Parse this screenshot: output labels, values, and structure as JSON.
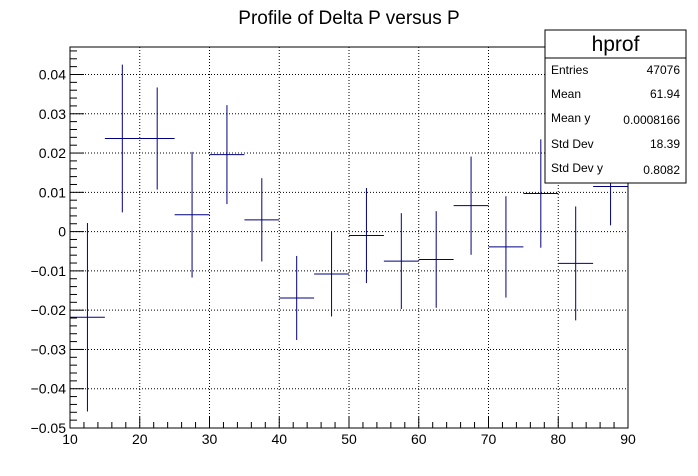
{
  "chart_data": {
    "type": "profile",
    "title": "Profile of Delta P versus P",
    "xlabel": "",
    "ylabel": "",
    "xlim": [
      10,
      90
    ],
    "ylim": [
      -0.05,
      0.047
    ],
    "grid": true,
    "x_ticks": [
      10,
      20,
      30,
      40,
      50,
      60,
      70,
      80,
      90
    ],
    "y_ticks": [
      -0.05,
      -0.04,
      -0.03,
      -0.02,
      -0.01,
      0,
      0.01,
      0.02,
      0.03,
      0.04
    ],
    "x_tick_labels": [
      "10",
      "20",
      "30",
      "40",
      "50",
      "60",
      "70",
      "80",
      "90"
    ],
    "y_tick_labels": [
      "−0.05",
      "−0.04",
      "−0.03",
      "−0.02",
      "−0.01",
      "0",
      "0.01",
      "0.02",
      "0.03",
      "0.04"
    ],
    "line_color": "#000080",
    "points": [
      {
        "x": 12.5,
        "y": -0.0218,
        "xerr": 2.5,
        "yerr": 0.024
      },
      {
        "x": 17.5,
        "y": 0.0237,
        "xerr": 2.5,
        "yerr": 0.0188
      },
      {
        "x": 22.5,
        "y": 0.0237,
        "xerr": 2.5,
        "yerr": 0.013
      },
      {
        "x": 27.5,
        "y": 0.0043,
        "xerr": 2.5,
        "yerr": 0.016
      },
      {
        "x": 32.5,
        "y": 0.0196,
        "xerr": 2.5,
        "yerr": 0.0126
      },
      {
        "x": 37.5,
        "y": 0.003,
        "xerr": 2.5,
        "yerr": 0.0106
      },
      {
        "x": 42.5,
        "y": -0.0169,
        "xerr": 2.5,
        "yerr": 0.0107
      },
      {
        "x": 47.5,
        "y": -0.0108,
        "xerr": 2.5,
        "yerr": 0.0108
      },
      {
        "x": 52.5,
        "y": -0.001,
        "xerr": 2.5,
        "yerr": 0.0121
      },
      {
        "x": 57.5,
        "y": -0.0075,
        "xerr": 2.5,
        "yerr": 0.0122
      },
      {
        "x": 62.5,
        "y": -0.0071,
        "xerr": 2.5,
        "yerr": 0.0123
      },
      {
        "x": 67.5,
        "y": 0.0066,
        "xerr": 2.5,
        "yerr": 0.0125
      },
      {
        "x": 72.5,
        "y": -0.0039,
        "xerr": 2.5,
        "yerr": 0.0129
      },
      {
        "x": 77.5,
        "y": 0.0097,
        "xerr": 2.5,
        "yerr": 0.0138
      },
      {
        "x": 82.5,
        "y": -0.0081,
        "xerr": 2.5,
        "yerr": 0.0145
      },
      {
        "x": 87.5,
        "y": 0.0115,
        "xerr": 2.5,
        "yerr": 0.0099
      }
    ]
  },
  "stats_box": {
    "title": "hprof",
    "rows": [
      {
        "label": "Entries",
        "value": "47076"
      },
      {
        "label": "Mean",
        "value": "61.94"
      },
      {
        "label": "Mean y",
        "value": "0.0008166"
      },
      {
        "label": "Std Dev",
        "value": "18.39"
      },
      {
        "label": "Std Dev y",
        "value": "0.8082"
      }
    ]
  }
}
